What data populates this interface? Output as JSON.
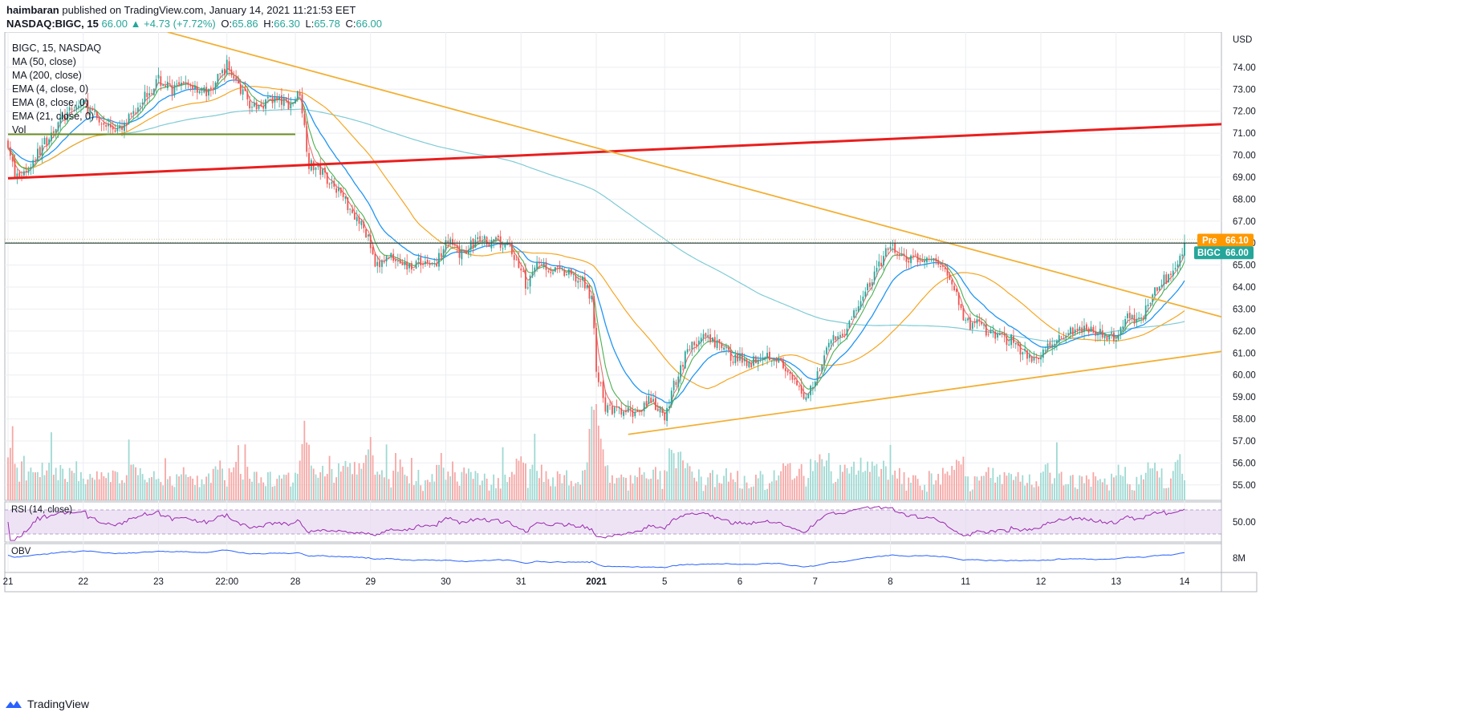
{
  "header": {
    "author": "haimbaran",
    "published_text": "published on TradingView.com, January 14, 2021 11:21:53 EET",
    "symbol": "NASDAQ:BIGC, 15",
    "last": "66.00",
    "change": "▲ +4.73 (+7.72%)",
    "o_label": "O:",
    "o_value": "65.86",
    "h_label": "H:",
    "h_value": "66.30",
    "l_label": "L:",
    "l_value": "65.78",
    "c_label": "C:",
    "c_value": "66.00"
  },
  "legend": {
    "symbol": "BIGC, 15, NASDAQ",
    "ma50": "MA (50, close)",
    "ma200": "MA (200, close)",
    "ema4": "EMA (4, close, 0)",
    "ema8": "EMA (8, close, 0)",
    "ema21": "EMA (21, close, 0)",
    "vol": "Vol"
  },
  "footer": {
    "brand": "TradingView"
  },
  "colors": {
    "up": "#26a69a",
    "down": "#ef5350",
    "ma50": "#f5a623",
    "ma200": "#80cbd4",
    "ema4": "#e57373",
    "ema8": "#4caf50",
    "ema21": "#2196f3",
    "trend_red": "#e91e1e",
    "trend_gold": "#f2b035",
    "support_green": "#6b8e23",
    "rsi": "#9c27b0",
    "obv": "#2962ff"
  },
  "chart_data": {
    "type": "candlestick",
    "title": "BIGC, 15, NASDAQ",
    "currency": "USD",
    "ylim": [
      54.3,
      75.6
    ],
    "y_ticks": [
      "55.00",
      "56.00",
      "57.00",
      "58.00",
      "59.00",
      "60.00",
      "61.00",
      "62.00",
      "63.00",
      "64.00",
      "65.00",
      "66.00",
      "67.00",
      "68.00",
      "69.00",
      "70.00",
      "71.00",
      "72.00",
      "73.00",
      "74.00"
    ],
    "y_tick_values": [
      55,
      56,
      57,
      58,
      59,
      60,
      61,
      62,
      63,
      64,
      65,
      66,
      67,
      68,
      69,
      70,
      71,
      72,
      73,
      74
    ],
    "x_labels": [
      "21",
      "22",
      "23",
      "22:00",
      "28",
      "29",
      "30",
      "31",
      "2021",
      "5",
      "6",
      "7",
      "8",
      "11",
      "12",
      "13",
      "14"
    ],
    "x_label_index": [
      0,
      33,
      66,
      96,
      126,
      159,
      192,
      225,
      258,
      288,
      321,
      354,
      387,
      420,
      453,
      486,
      516
    ],
    "price_path": [
      [
        0,
        70.6
      ],
      [
        3,
        69.0
      ],
      [
        8,
        69.3
      ],
      [
        15,
        70.4
      ],
      [
        22,
        71.5
      ],
      [
        33,
        72.4
      ],
      [
        40,
        71.5
      ],
      [
        50,
        71.1
      ],
      [
        58,
        72.5
      ],
      [
        66,
        73.4
      ],
      [
        72,
        73.0
      ],
      [
        80,
        73.2
      ],
      [
        88,
        72.8
      ],
      [
        96,
        74.1
      ],
      [
        102,
        73.0
      ],
      [
        108,
        72.1
      ],
      [
        115,
        72.6
      ],
      [
        124,
        72.3
      ],
      [
        128,
        72.9
      ],
      [
        132,
        69.6
      ],
      [
        137,
        69.3
      ],
      [
        145,
        68.4
      ],
      [
        152,
        67.3
      ],
      [
        158,
        66.3
      ],
      [
        161,
        64.8
      ],
      [
        168,
        65.5
      ],
      [
        175,
        64.9
      ],
      [
        182,
        65.2
      ],
      [
        188,
        65.0
      ],
      [
        192,
        66.3
      ],
      [
        198,
        65.4
      ],
      [
        205,
        66.1
      ],
      [
        212,
        66.1
      ],
      [
        220,
        65.8
      ],
      [
        225,
        64.8
      ],
      [
        228,
        63.9
      ],
      [
        232,
        65.3
      ],
      [
        238,
        64.8
      ],
      [
        245,
        64.6
      ],
      [
        252,
        64.2
      ],
      [
        256,
        63.6
      ],
      [
        258,
        60.3
      ],
      [
        262,
        58.5
      ],
      [
        268,
        58.3
      ],
      [
        275,
        58.3
      ],
      [
        281,
        58.9
      ],
      [
        288,
        58.0
      ],
      [
        292,
        59.5
      ],
      [
        298,
        61.2
      ],
      [
        305,
        61.7
      ],
      [
        312,
        61.3
      ],
      [
        318,
        60.8
      ],
      [
        321,
        60.7
      ],
      [
        326,
        60.6
      ],
      [
        331,
        61.0
      ],
      [
        337,
        60.8
      ],
      [
        343,
        59.8
      ],
      [
        350,
        59.0
      ],
      [
        354,
        59.8
      ],
      [
        359,
        61.3
      ],
      [
        366,
        61.9
      ],
      [
        374,
        63.3
      ],
      [
        380,
        64.6
      ],
      [
        387,
        65.9
      ],
      [
        392,
        65.3
      ],
      [
        398,
        65.2
      ],
      [
        404,
        65.3
      ],
      [
        410,
        64.9
      ],
      [
        414,
        64.2
      ],
      [
        418,
        63.1
      ],
      [
        420,
        62.3
      ],
      [
        426,
        62.3
      ],
      [
        433,
        61.7
      ],
      [
        440,
        61.6
      ],
      [
        447,
        60.8
      ],
      [
        453,
        60.9
      ],
      [
        458,
        61.6
      ],
      [
        464,
        61.9
      ],
      [
        470,
        62.2
      ],
      [
        476,
        62.1
      ],
      [
        482,
        61.6
      ],
      [
        486,
        61.8
      ],
      [
        490,
        62.6
      ],
      [
        496,
        62.6
      ],
      [
        500,
        63.0
      ],
      [
        505,
        64.3
      ],
      [
        511,
        64.5
      ],
      [
        516,
        66.0
      ]
    ],
    "n_bars": 517,
    "last_price": 66.0,
    "premarket_price": 66.1,
    "price_badge": "66.00",
    "price_badge_symbol": "BIGC",
    "pre_badge": "66.10",
    "pre_badge_label": "Pre",
    "trendlines": [
      {
        "name": "red ascending resistance",
        "from": [
          0,
          68.95
        ],
        "to": [
          541,
          71.45
        ]
      },
      {
        "name": "gold descending",
        "from": [
          70,
          75.6
        ],
        "to": [
          541,
          62.4
        ]
      },
      {
        "name": "gold ascending support",
        "from": [
          272,
          57.3
        ],
        "to": [
          541,
          61.2
        ]
      },
      {
        "name": "green support segment",
        "from": [
          0,
          70.95
        ],
        "to": [
          126,
          70.95
        ]
      }
    ],
    "rsi": {
      "label": "RSI (14, close)",
      "tick": "50.00",
      "levels": [
        30,
        50,
        70
      ]
    },
    "obv": {
      "label": "OBV",
      "tick": "8M"
    }
  }
}
